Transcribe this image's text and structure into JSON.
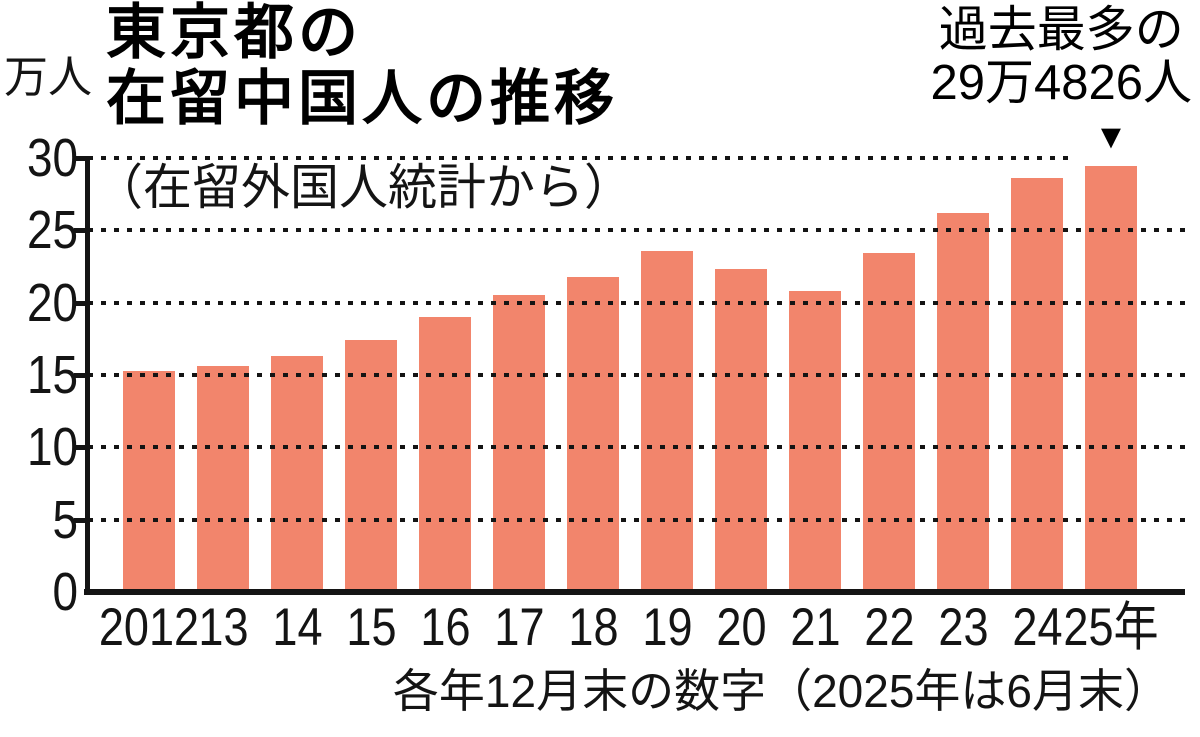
{
  "chart_data": {
    "type": "bar",
    "title": "東京都の在留中国人の推移",
    "title_lines": [
      "東京都の",
      "在留中国人の推移"
    ],
    "unit_label": "万人",
    "source_note": "（在留外国人統計から）",
    "annotation": {
      "line1": "過去最多の",
      "line2": "29万4826人",
      "marker": "▼"
    },
    "categories": [
      "2012",
      "13",
      "14",
      "15",
      "16",
      "17",
      "18",
      "19",
      "20",
      "21",
      "22",
      "23",
      "24",
      "25年"
    ],
    "values": [
      15.3,
      15.6,
      16.3,
      17.4,
      19.0,
      20.5,
      21.8,
      23.6,
      22.3,
      20.8,
      23.4,
      26.2,
      28.6,
      29.48
    ],
    "footnote": "各年12月末の数字（2025年は6月末）",
    "xlabel": "",
    "ylabel": "万人",
    "ylim": [
      0,
      30
    ],
    "yticks": [
      0,
      5,
      10,
      15,
      20,
      25,
      30
    ],
    "grid": "horizontal-dotted",
    "legend": "none",
    "bar_color": "#F2856C",
    "ink_color": "#141414"
  }
}
